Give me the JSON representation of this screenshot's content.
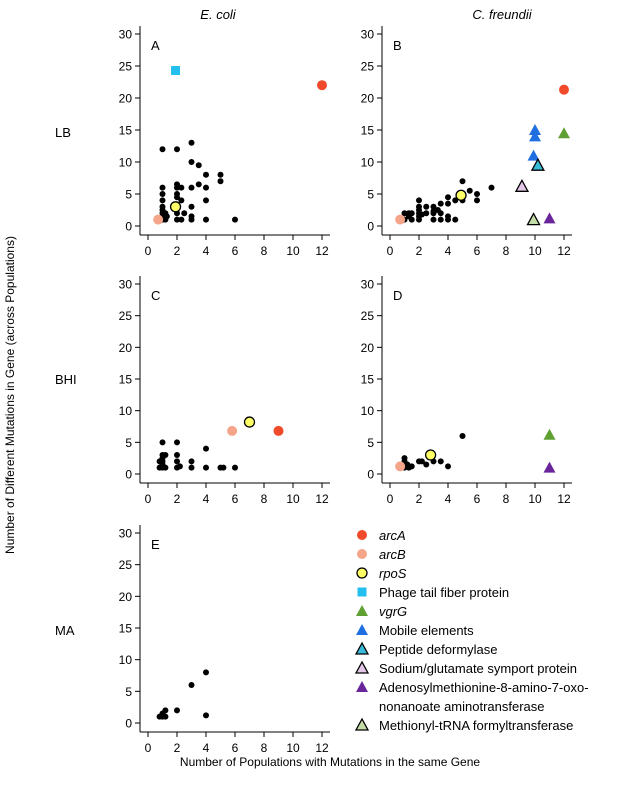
{
  "figure": {
    "ylabel": "Number of Different Mutations in Gene (across Populations)",
    "xlabel": "Number of Populations with Mutations in the same Gene",
    "column_titles": [
      "E. coli",
      "C. freundii"
    ],
    "row_labels": [
      "LB",
      "BHI",
      "MA"
    ]
  },
  "legend": [
    {
      "label": "arcA",
      "italic": true,
      "marker": "circle",
      "fill": "#f04a2a",
      "outline": false
    },
    {
      "label": "arcB",
      "italic": true,
      "marker": "circle",
      "fill": "#f4a58a",
      "outline": false
    },
    {
      "label": "rpoS",
      "italic": true,
      "marker": "circle",
      "fill": "#ffff66",
      "outline": true
    },
    {
      "label": "Phage tail fiber protein",
      "italic": false,
      "marker": "square",
      "fill": "#22bfef",
      "outline": false
    },
    {
      "label": "vgrG",
      "italic": true,
      "marker": "triangle",
      "fill": "#5fa032",
      "outline": false
    },
    {
      "label": "Mobile elements",
      "italic": false,
      "marker": "triangle",
      "fill": "#1f6fe0",
      "outline": false
    },
    {
      "label": "Peptide deformylase",
      "italic": false,
      "marker": "triangle",
      "fill": "#38bcd8",
      "outline": true
    },
    {
      "label": "Sodium/glutamate symport protein",
      "italic": false,
      "marker": "triangle",
      "fill": "#e3c6e8",
      "outline": true
    },
    {
      "label": "Adenosylmethionine-8-amino-7-oxo-",
      "italic": false,
      "marker": "triangle",
      "fill": "#6a259a",
      "outline": false
    },
    {
      "label": "nonanoate aminotransferase",
      "italic": false,
      "marker": "none",
      "fill": "",
      "outline": false
    },
    {
      "label": "Methionyl-tRNA formyltransferase",
      "italic": false,
      "marker": "triangle",
      "fill": "#c4dca8",
      "outline": true
    }
  ],
  "chart_data": [
    {
      "type": "scatter",
      "panel": "A",
      "organism": "E. coli",
      "medium": "LB",
      "xlim": [
        0,
        12
      ],
      "ylim": [
        0,
        30
      ],
      "xticks": [
        0,
        2,
        4,
        6,
        8,
        10,
        12
      ],
      "yticks": [
        0,
        5,
        10,
        15,
        20,
        25,
        30
      ],
      "background_points": [
        [
          1,
          12
        ],
        [
          2,
          12
        ],
        [
          1,
          6
        ],
        [
          1,
          5
        ],
        [
          1,
          4
        ],
        [
          1,
          3
        ],
        [
          1,
          2.5
        ],
        [
          1,
          2
        ],
        [
          1,
          1.5
        ],
        [
          1,
          1
        ],
        [
          1.2,
          2
        ],
        [
          1.2,
          1
        ],
        [
          1.3,
          1.5
        ],
        [
          2,
          6.5
        ],
        [
          2,
          6
        ],
        [
          2,
          5
        ],
        [
          2,
          4.5
        ],
        [
          2,
          2
        ],
        [
          2,
          1
        ],
        [
          2.3,
          6
        ],
        [
          2.3,
          4
        ],
        [
          2.3,
          1
        ],
        [
          2.5,
          2
        ],
        [
          3,
          13
        ],
        [
          3,
          10
        ],
        [
          3,
          6
        ],
        [
          3,
          3
        ],
        [
          3,
          1
        ],
        [
          3,
          1.5
        ],
        [
          3.5,
          9.5
        ],
        [
          3.5,
          6.5
        ],
        [
          4,
          8
        ],
        [
          4,
          6
        ],
        [
          4,
          4
        ],
        [
          4,
          1
        ],
        [
          5,
          8
        ],
        [
          5,
          7
        ],
        [
          6,
          1
        ]
      ],
      "highlighted": [
        {
          "gene": "arcA",
          "x": 12,
          "y": 22
        },
        {
          "gene": "arcB",
          "x": 0.7,
          "y": 1
        },
        {
          "gene": "rpoS",
          "x": 1.9,
          "y": 3
        },
        {
          "gene": "Phage tail fiber protein",
          "x": 1.9,
          "y": 24.3
        }
      ]
    },
    {
      "type": "scatter",
      "panel": "B",
      "organism": "C. freundii",
      "medium": "LB",
      "xlim": [
        0,
        12
      ],
      "ylim": [
        0,
        30
      ],
      "xticks": [
        0,
        2,
        4,
        6,
        8,
        10,
        12
      ],
      "yticks": [
        0,
        5,
        10,
        15,
        20,
        25,
        30
      ],
      "background_points": [
        [
          1,
          2
        ],
        [
          1,
          1
        ],
        [
          1.3,
          2
        ],
        [
          1.3,
          1.5
        ],
        [
          1.5,
          2
        ],
        [
          1.5,
          1
        ],
        [
          2,
          4
        ],
        [
          2,
          3
        ],
        [
          2,
          2.5
        ],
        [
          2,
          2
        ],
        [
          2,
          1.5
        ],
        [
          2,
          1
        ],
        [
          2.5,
          3
        ],
        [
          2.5,
          2
        ],
        [
          3,
          3
        ],
        [
          3,
          2
        ],
        [
          3,
          1
        ],
        [
          3.3,
          2.5
        ],
        [
          3.5,
          3.5
        ],
        [
          3.5,
          2
        ],
        [
          3.5,
          1
        ],
        [
          4,
          4.5
        ],
        [
          4,
          3.5
        ],
        [
          4,
          1.5
        ],
        [
          4,
          1
        ],
        [
          4.5,
          4
        ],
        [
          4.5,
          1
        ],
        [
          5,
          7
        ],
        [
          5,
          5
        ],
        [
          5,
          4
        ],
        [
          5.5,
          5.5
        ],
        [
          6,
          5
        ],
        [
          6,
          4
        ],
        [
          7,
          6
        ],
        [
          3,
          2.3
        ],
        [
          2.2,
          1.8
        ]
      ],
      "highlighted": [
        {
          "gene": "arcA",
          "x": 12,
          "y": 21.3
        },
        {
          "gene": "arcB",
          "x": 0.7,
          "y": 1
        },
        {
          "gene": "rpoS",
          "x": 4.9,
          "y": 4.8
        },
        {
          "gene": "vgrG",
          "x": 12,
          "y": 14.5
        },
        {
          "gene": "Mobile elements",
          "x": 10,
          "y": 15
        },
        {
          "gene": "Mobile elements",
          "x": 10,
          "y": 14
        },
        {
          "gene": "Mobile elements",
          "x": 9.9,
          "y": 11
        },
        {
          "gene": "Peptide deformylase",
          "x": 10.2,
          "y": 9.5
        },
        {
          "gene": "Sodium/glutamate symport protein",
          "x": 9.1,
          "y": 6.2
        },
        {
          "gene": "Adenosylmethionine-8-amino-7-oxo-nonanoate aminotransferase",
          "x": 11,
          "y": 1.2
        },
        {
          "gene": "Methionyl-tRNA formyltransferase",
          "x": 9.9,
          "y": 1
        }
      ]
    },
    {
      "type": "scatter",
      "panel": "C",
      "organism": "E. coli",
      "medium": "BHI",
      "xlim": [
        0,
        12
      ],
      "ylim": [
        0,
        30
      ],
      "xticks": [
        0,
        2,
        4,
        6,
        8,
        10,
        12
      ],
      "yticks": [
        0,
        5,
        10,
        15,
        20,
        25,
        30
      ],
      "background_points": [
        [
          1,
          5
        ],
        [
          1,
          3
        ],
        [
          1,
          2.5
        ],
        [
          1,
          2
        ],
        [
          1,
          1.5
        ],
        [
          1,
          1
        ],
        [
          0.8,
          2
        ],
        [
          0.8,
          1
        ],
        [
          1.2,
          3
        ],
        [
          1.2,
          1
        ],
        [
          2,
          5
        ],
        [
          2,
          3
        ],
        [
          2,
          2
        ],
        [
          2,
          1
        ],
        [
          2.2,
          1.2
        ],
        [
          3,
          2
        ],
        [
          3,
          1
        ],
        [
          4,
          4
        ],
        [
          4,
          1
        ],
        [
          5,
          1
        ],
        [
          5.2,
          1
        ],
        [
          6,
          1
        ]
      ],
      "highlighted": [
        {
          "gene": "arcA",
          "x": 9,
          "y": 6.8
        },
        {
          "gene": "arcB",
          "x": 5.8,
          "y": 6.8
        },
        {
          "gene": "rpoS",
          "x": 7,
          "y": 8.2
        }
      ]
    },
    {
      "type": "scatter",
      "panel": "D",
      "organism": "C. freundii",
      "medium": "BHI",
      "xlim": [
        0,
        12
      ],
      "ylim": [
        0,
        30
      ],
      "xticks": [
        0,
        2,
        4,
        6,
        8,
        10,
        12
      ],
      "yticks": [
        0,
        5,
        10,
        15,
        20,
        25,
        30
      ],
      "background_points": [
        [
          1,
          2.5
        ],
        [
          1,
          2
        ],
        [
          1,
          1.5
        ],
        [
          1,
          1
        ],
        [
          1.2,
          1.5
        ],
        [
          1.3,
          1
        ],
        [
          1.5,
          1.2
        ],
        [
          2,
          2
        ],
        [
          2.2,
          2
        ],
        [
          2.5,
          1.5
        ],
        [
          3,
          2
        ],
        [
          3.5,
          2
        ],
        [
          4,
          1.2
        ],
        [
          5,
          6
        ]
      ],
      "highlighted": [
        {
          "gene": "arcB",
          "x": 0.7,
          "y": 1.2
        },
        {
          "gene": "rpoS",
          "x": 2.8,
          "y": 3
        },
        {
          "gene": "vgrG",
          "x": 11,
          "y": 6.2
        },
        {
          "gene": "Adenosylmethionine-8-amino-7-oxo-nonanoate aminotransferase",
          "x": 11,
          "y": 1
        }
      ]
    },
    {
      "type": "scatter",
      "panel": "E",
      "organism": "E. coli",
      "medium": "MA",
      "xlim": [
        0,
        12
      ],
      "ylim": [
        0,
        30
      ],
      "xticks": [
        0,
        2,
        4,
        6,
        8,
        10,
        12
      ],
      "yticks": [
        0,
        5,
        10,
        15,
        20,
        25,
        30
      ],
      "background_points": [
        [
          0.8,
          1
        ],
        [
          1,
          1.5
        ],
        [
          1,
          1
        ],
        [
          1.2,
          2
        ],
        [
          1.2,
          1
        ],
        [
          2,
          2
        ],
        [
          3,
          6
        ],
        [
          4,
          8
        ],
        [
          4,
          1.2
        ]
      ],
      "highlighted": []
    }
  ]
}
